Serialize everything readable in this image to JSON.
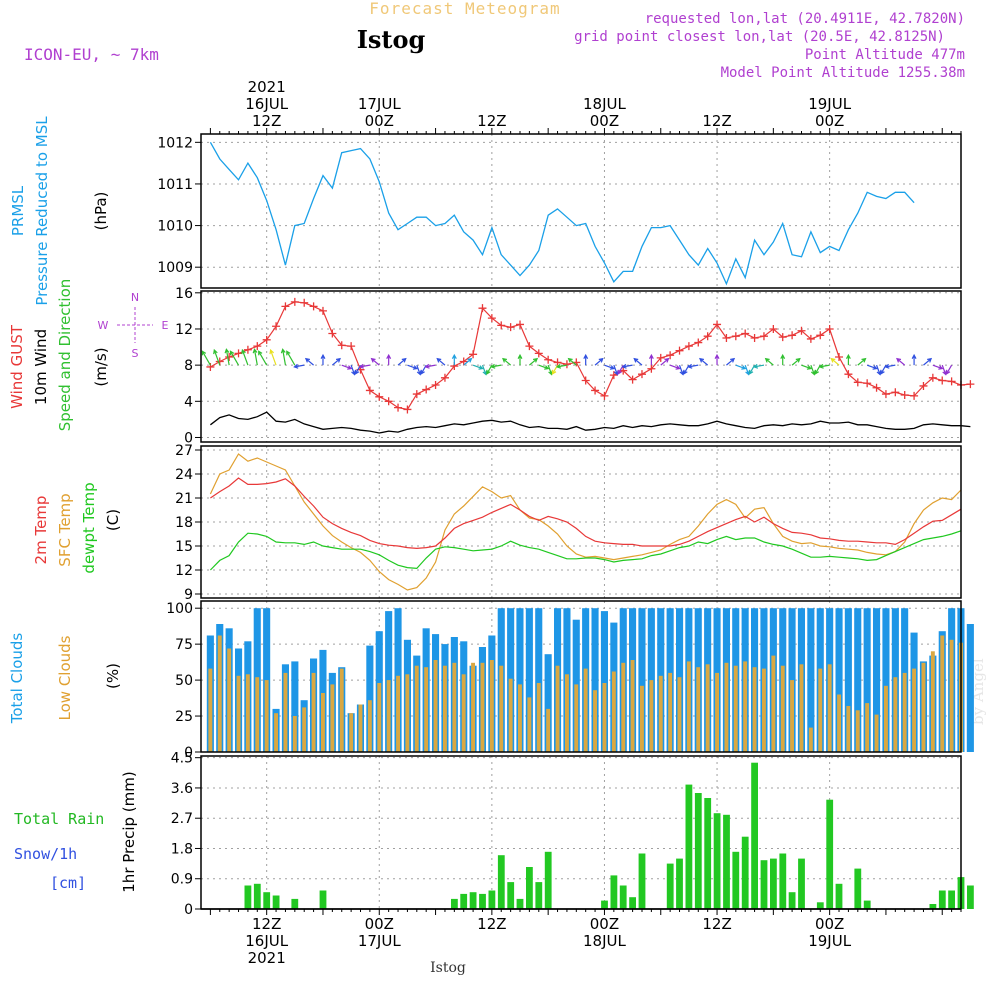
{
  "header": {
    "top_title": "Forecast Meteogram",
    "location": "Istog",
    "model": "ICON-EU, ~ 7km",
    "requested": "requested lon,lat (20.4911E, 42.7820N)",
    "grid_point": "grid point closest lon,lat (20.5E, 42.8125N)",
    "point_alt": "Point Altitude 477m",
    "model_alt": "Model Point Altitude 1255.38m",
    "footer_location": "Istog",
    "watermark": "by Angel"
  },
  "time_axis": {
    "top_labels": [
      {
        "h": 12,
        "lines": [
          "2021",
          "16JUL",
          "12Z"
        ]
      },
      {
        "h": 24,
        "lines": [
          "17JUL",
          "00Z"
        ]
      },
      {
        "h": 36,
        "lines": [
          "12Z"
        ]
      },
      {
        "h": 48,
        "lines": [
          "18JUL",
          "00Z"
        ]
      },
      {
        "h": 60,
        "lines": [
          "12Z"
        ]
      },
      {
        "h": 72,
        "lines": [
          "19JUL",
          "00Z"
        ]
      }
    ],
    "bottom_labels": [
      {
        "h": 12,
        "lines": [
          "12Z",
          "16JUL",
          "2021"
        ]
      },
      {
        "h": 24,
        "lines": [
          "00Z",
          "17JUL"
        ]
      },
      {
        "h": 36,
        "lines": [
          "12Z"
        ]
      },
      {
        "h": 48,
        "lines": [
          "00Z",
          "18JUL"
        ]
      },
      {
        "h": 60,
        "lines": [
          "12Z"
        ]
      },
      {
        "h": 72,
        "lines": [
          "00Z",
          "19JUL"
        ]
      }
    ]
  },
  "chart_data": [
    {
      "type": "line",
      "panel": "pressure",
      "ylabel": [
        "PRMSL",
        "Pressure Reduced to MSL",
        "(hPa)"
      ],
      "ylim": [
        1008.5,
        1012.2
      ],
      "yticks": [
        1009,
        1010,
        1011,
        1012
      ],
      "x_start_hour": 6,
      "x_step_hours": 1,
      "series": [
        {
          "values": [
            1012.0,
            1011.6,
            1011.35,
            1011.1,
            1011.5,
            1011.15,
            1010.6,
            1009.9,
            1009.05,
            1010.0,
            1010.05,
            1010.65,
            1011.2,
            1010.9,
            1011.75,
            1011.8,
            1011.85,
            1011.6,
            1011.05,
            1010.3,
            1009.9,
            1010.05,
            1010.2,
            1010.2,
            1010.0,
            1010.05,
            1010.25,
            1009.85,
            1009.65,
            1009.3,
            1009.95,
            1009.3,
            1009.05,
            1008.8,
            1009.05,
            1009.4,
            1010.25,
            1010.4,
            1010.2,
            1010.0,
            1010.05,
            1009.5,
            1009.1,
            1008.65,
            1008.9,
            1008.9,
            1009.5,
            1009.95,
            1009.95,
            1010.0,
            1009.65,
            1009.3,
            1009.05,
            1009.45,
            1009.1,
            1008.6,
            1009.2,
            1008.75,
            1009.65,
            1009.3,
            1009.6,
            1010.05,
            1009.3,
            1009.25,
            1009.85,
            1009.35,
            1009.5,
            1009.4,
            1009.9,
            1010.3,
            1010.8,
            1010.7,
            1010.65,
            1010.8,
            1010.8,
            1010.55
          ]
        }
      ]
    },
    {
      "type": "line",
      "panel": "wind",
      "ylabel": [
        "Wind GUST",
        "10m Wind",
        "Speed and Direction",
        "(m/s)"
      ],
      "compass": [
        "N",
        "W",
        "E",
        "S"
      ],
      "ylim": [
        -0.5,
        16.2
      ],
      "yticks": [
        0,
        4,
        8,
        12,
        16
      ],
      "x_start_hour": 6,
      "x_step_hours": 1,
      "series": [
        {
          "name": "Wind GUST",
          "values": [
            7.8,
            8.4,
            8.9,
            9.3,
            9.7,
            10.1,
            10.8,
            12.3,
            14.5,
            15.0,
            14.9,
            14.5,
            14.0,
            11.5,
            10.2,
            10.1,
            7.5,
            5.2,
            4.5,
            4.0,
            3.3,
            3.1,
            4.8,
            5.3,
            5.8,
            6.6,
            7.9,
            8.4,
            9.2,
            14.3,
            13.2,
            12.4,
            12.2,
            12.5,
            10.1,
            9.3,
            8.6,
            8.3,
            8.1,
            8.3,
            6.3,
            5.2,
            4.6,
            6.9,
            7.4,
            6.4,
            7.0,
            7.6,
            8.8,
            9.1,
            9.6,
            10.1,
            10.5,
            11.2,
            12.5,
            11.0,
            11.2,
            11.5,
            11.0,
            11.2,
            12.0,
            11.1,
            11.3,
            11.8,
            10.9,
            11.3,
            12.0,
            8.9,
            7.0,
            6.1,
            6.0,
            5.5,
            4.8,
            5.0,
            4.7,
            4.6,
            5.7,
            6.6,
            6.3,
            6.2,
            5.8,
            5.9
          ]
        },
        {
          "name": "10m Wind",
          "values": [
            1.4,
            2.2,
            2.5,
            2.1,
            2.0,
            2.3,
            2.8,
            1.8,
            1.7,
            2.0,
            1.5,
            1.2,
            0.9,
            1.0,
            1.1,
            1.0,
            0.8,
            0.7,
            0.5,
            0.7,
            0.6,
            0.9,
            1.1,
            1.2,
            1.1,
            1.3,
            1.5,
            1.4,
            1.6,
            1.8,
            1.9,
            1.7,
            1.8,
            1.4,
            1.1,
            1.2,
            1.0,
            1.0,
            0.9,
            1.2,
            0.8,
            0.9,
            1.1,
            1.0,
            1.3,
            1.1,
            1.3,
            1.2,
            1.4,
            1.5,
            1.4,
            1.3,
            1.3,
            1.5,
            1.8,
            1.5,
            1.3,
            1.1,
            1.0,
            1.3,
            1.4,
            1.3,
            1.5,
            1.4,
            1.5,
            1.8,
            1.6,
            1.6,
            1.7,
            1.4,
            1.4,
            1.2,
            1.0,
            0.9,
            0.9,
            1.0,
            1.4,
            1.5,
            1.4,
            1.3,
            1.3,
            1.2
          ]
        }
      ]
    },
    {
      "type": "line",
      "panel": "temperature",
      "ylabel": [
        "2m Temp",
        "SFC Temp",
        "dewpt Temp",
        "(C)"
      ],
      "ylim": [
        8.5,
        27.5
      ],
      "yticks": [
        9,
        12,
        15,
        18,
        21,
        24,
        27
      ],
      "x_start_hour": 6,
      "x_step_hours": 1,
      "series": [
        {
          "name": "2m Temp",
          "values": [
            21.0,
            21.8,
            22.5,
            23.5,
            22.7,
            22.7,
            22.8,
            23.0,
            23.4,
            22.5,
            21.2,
            20.0,
            18.6,
            17.8,
            17.2,
            16.7,
            16.3,
            15.7,
            15.3,
            15.1,
            15.0,
            14.8,
            14.7,
            14.8,
            15.0,
            16.0,
            17.2,
            17.8,
            18.2,
            18.6,
            19.2,
            19.7,
            20.2,
            19.5,
            18.7,
            18.2,
            18.7,
            18.4,
            18.0,
            17.2,
            16.2,
            15.6,
            15.4,
            15.3,
            15.2,
            15.2,
            15.0,
            15.0,
            15.0,
            15.0,
            15.2,
            15.6,
            16.2,
            16.8,
            17.3,
            17.8,
            18.3,
            18.7,
            18.0,
            18.6,
            17.8,
            17.2,
            16.7,
            16.6,
            16.4,
            16.0,
            15.9,
            15.7,
            15.6,
            15.6,
            15.5,
            15.4,
            15.4,
            15.2,
            15.8,
            16.6,
            17.4,
            18.1,
            18.2,
            18.9,
            19.6
          ]
        },
        {
          "name": "SFC Temp",
          "values": [
            21.5,
            24.0,
            24.5,
            26.5,
            25.6,
            26.0,
            25.5,
            25.0,
            24.5,
            22.5,
            20.5,
            19.0,
            17.5,
            16.3,
            15.5,
            14.8,
            14.2,
            13.2,
            11.8,
            10.8,
            10.2,
            9.5,
            9.8,
            11.0,
            13.0,
            17.0,
            19.0,
            20.0,
            21.2,
            22.4,
            21.8,
            21.0,
            21.3,
            19.5,
            18.5,
            18.3,
            17.5,
            16.5,
            15.0,
            14.0,
            13.6,
            13.7,
            13.5,
            13.3,
            13.5,
            13.7,
            13.9,
            14.2,
            14.5,
            15.2,
            15.8,
            16.2,
            17.5,
            19.0,
            20.2,
            20.8,
            20.2,
            18.5,
            19.6,
            19.8,
            17.8,
            16.2,
            15.6,
            15.3,
            15.4,
            15.0,
            14.9,
            14.7,
            14.6,
            14.5,
            14.2,
            14.0,
            13.9,
            14.3,
            15.5,
            17.8,
            19.5,
            20.4,
            21.0,
            20.8,
            22.0
          ]
        },
        {
          "name": "dewpt Temp",
          "values": [
            12.0,
            13.2,
            13.8,
            15.5,
            16.6,
            16.5,
            16.2,
            15.5,
            15.4,
            15.4,
            15.2,
            15.5,
            15.0,
            14.8,
            14.6,
            14.6,
            14.6,
            14.3,
            13.9,
            13.2,
            12.6,
            12.3,
            12.2,
            13.5,
            14.6,
            14.9,
            14.8,
            14.6,
            14.4,
            14.5,
            14.6,
            15.0,
            15.6,
            15.1,
            14.8,
            14.6,
            14.2,
            13.8,
            13.4,
            13.4,
            13.5,
            13.5,
            13.3,
            13.0,
            13.2,
            13.3,
            13.4,
            13.8,
            14.0,
            14.4,
            14.8,
            15.0,
            15.5,
            15.3,
            15.8,
            16.2,
            15.8,
            16.0,
            16.0,
            15.5,
            15.2,
            15.0,
            14.6,
            14.1,
            13.6,
            13.6,
            13.7,
            13.6,
            13.5,
            13.4,
            13.2,
            13.3,
            13.8,
            14.3,
            14.8,
            15.3,
            15.8,
            16.0,
            16.2,
            16.5,
            16.9
          ]
        }
      ]
    },
    {
      "type": "bar",
      "panel": "clouds",
      "ylabel": [
        "Total Clouds",
        "Low Clouds",
        "(%)"
      ],
      "ylim": [
        0,
        105
      ],
      "yticks": [
        0,
        25,
        50,
        75,
        100
      ],
      "x_start_hour": 6,
      "x_step_hours": 1,
      "series": [
        {
          "name": "Total Clouds",
          "values": [
            81,
            89,
            86,
            72,
            77,
            100,
            100,
            30,
            61,
            63,
            36,
            65,
            71,
            55,
            59,
            27,
            33,
            74,
            84,
            98,
            100,
            78,
            67,
            86,
            82,
            75,
            80,
            77,
            60,
            73,
            81,
            100,
            100,
            100,
            100,
            100,
            68,
            100,
            100,
            92,
            100,
            100,
            98,
            90,
            100,
            100,
            100,
            100,
            100,
            100,
            100,
            100,
            100,
            100,
            100,
            100,
            100,
            100,
            100,
            100,
            100,
            100,
            100,
            100,
            100,
            100,
            100,
            100,
            100,
            100,
            100,
            100,
            100,
            100,
            100,
            83,
            63,
            67,
            84,
            100,
            100,
            89
          ]
        },
        {
          "name": "Low Clouds",
          "values": [
            58,
            81,
            72,
            53,
            54,
            52,
            50,
            27,
            55,
            25,
            31,
            55,
            41,
            47,
            58,
            27,
            33,
            36,
            48,
            50,
            53,
            54,
            60,
            59,
            64,
            60,
            62,
            54,
            62,
            62,
            64,
            60,
            51,
            47,
            38,
            48,
            30,
            60,
            54,
            47,
            58,
            43,
            48,
            56,
            62,
            64,
            46,
            50,
            53,
            55,
            52,
            63,
            59,
            61,
            55,
            62,
            60,
            63,
            59,
            58,
            67,
            60,
            50,
            61,
            17,
            58,
            61,
            40,
            32,
            29,
            34,
            26,
            46,
            52,
            55,
            58,
            62,
            70,
            81,
            78,
            76
          ]
        }
      ]
    },
    {
      "type": "bar",
      "panel": "precipitation",
      "ylabel": [
        "1hr Precip (mm)"
      ],
      "legend_lines": [
        "Total Rain",
        "Snow/1h",
        "[cm]"
      ],
      "ylim": [
        0,
        4.55
      ],
      "yticks": [
        0,
        0.9,
        1.8,
        2.7,
        3.6,
        4.5
      ],
      "ytick_labels": [
        "0",
        "0.9",
        "1.8",
        "2.7",
        "3.6",
        "4.5"
      ],
      "x_start_hour": 6,
      "x_step_hours": 1,
      "series": [
        {
          "name": "Total Rain",
          "values": [
            0,
            0,
            0,
            0,
            0.7,
            0.75,
            0.5,
            0.4,
            0,
            0.3,
            0,
            0,
            0.55,
            0,
            0,
            0,
            0,
            0,
            0,
            0,
            0,
            0,
            0,
            0,
            0,
            0,
            0.3,
            0.45,
            0.5,
            0.45,
            0.55,
            1.6,
            0.8,
            0.3,
            1.25,
            0.8,
            1.7,
            0,
            0,
            0,
            0,
            0,
            0.25,
            1.0,
            0.7,
            0.35,
            1.65,
            0,
            0,
            1.35,
            1.5,
            3.7,
            3.45,
            3.3,
            2.85,
            2.8,
            1.7,
            2.15,
            4.35,
            1.45,
            1.5,
            1.65,
            0.5,
            1.5,
            0,
            0.2,
            3.25,
            0.75,
            0,
            1.2,
            0.25,
            0,
            0,
            0,
            0,
            0,
            0,
            0.15,
            0.55,
            0.55,
            0.95,
            0.7
          ]
        }
      ]
    }
  ]
}
